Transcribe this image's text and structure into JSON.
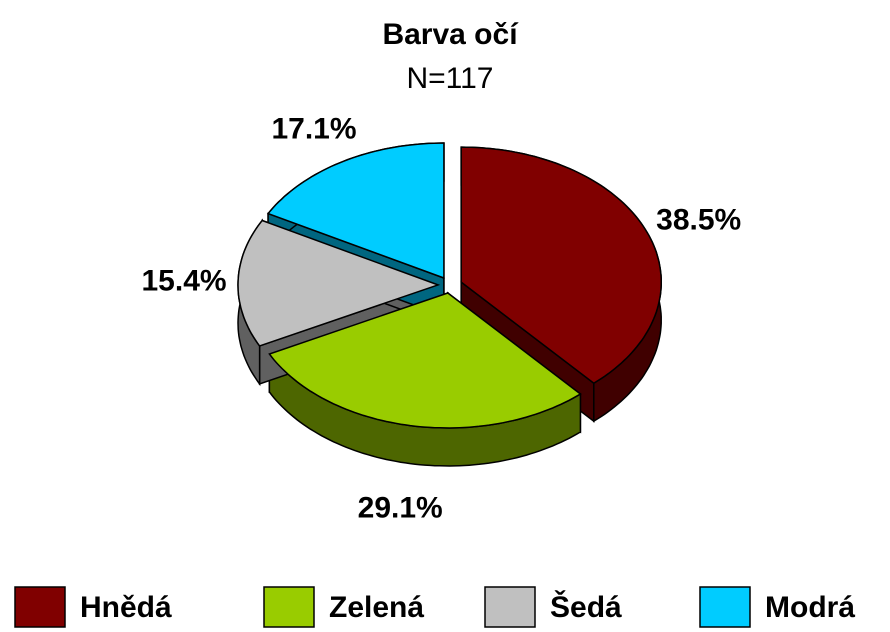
{
  "chart_data": {
    "type": "pie",
    "title": "Barva očí",
    "subtitle": "N=117",
    "categories": [
      "Hnědá",
      "Zelená",
      "Šedá",
      "Modrá"
    ],
    "values": [
      38.5,
      29.1,
      15.4,
      17.1
    ],
    "value_labels": [
      "38.5%",
      "29.1%",
      "15.4%",
      "17.1%"
    ],
    "colors": [
      "#800000",
      "#99cc00",
      "#c0c0c0",
      "#00ccff"
    ],
    "legend": "bottom"
  }
}
